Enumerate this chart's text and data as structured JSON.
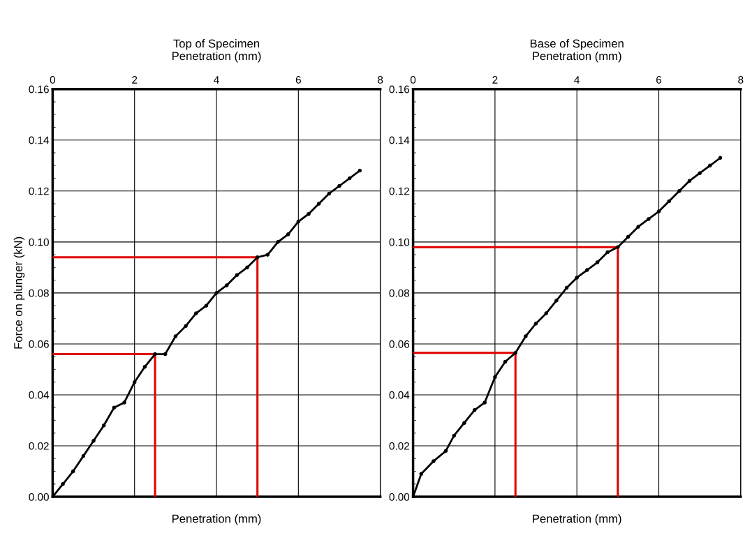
{
  "chart_data": [
    {
      "type": "line",
      "title": "Top of Specimen",
      "x2label": "Penetration (mm)",
      "xlabel": "Penetration (mm)",
      "ylabel": "Force on plunger (kN)",
      "xlim": [
        0,
        8
      ],
      "xticks": [
        0,
        2,
        4,
        6,
        8
      ],
      "ylim": [
        0,
        0.16
      ],
      "yticks": [
        {
          "value": 0,
          "label": "0.00"
        },
        {
          "value": 0.02,
          "label": "0.02"
        },
        {
          "value": 0.04,
          "label": "0.04"
        },
        {
          "value": 0.06,
          "label": "0.06"
        },
        {
          "value": 0.08,
          "label": "0.08"
        },
        {
          "value": 0.1,
          "label": "0.10"
        },
        {
          "value": 0.12,
          "label": "0.12"
        },
        {
          "value": 0.14,
          "label": "0.14"
        },
        {
          "value": 0.16,
          "label": "0.16"
        }
      ],
      "grid": true,
      "legend": false,
      "series": [
        {
          "color": "#000000",
          "marker": "circle",
          "x": [
            0,
            0.25,
            0.5,
            0.75,
            1.0,
            1.25,
            1.5,
            1.75,
            2.0,
            2.25,
            2.5,
            2.75,
            3.0,
            3.25,
            3.5,
            3.75,
            4.0,
            4.25,
            4.5,
            4.75,
            5.0,
            5.25,
            5.5,
            5.75,
            6.0,
            6.25,
            6.5,
            6.75,
            7.0,
            7.25,
            7.5
          ],
          "values": [
            0,
            0.005,
            0.01,
            0.016,
            0.022,
            0.028,
            0.035,
            0.037,
            0.045,
            0.051,
            0.056,
            0.056,
            0.063,
            0.067,
            0.072,
            0.075,
            0.08,
            0.083,
            0.087,
            0.09,
            0.094,
            0.095,
            0.1,
            0.103,
            0.108,
            0.111,
            0.115,
            0.119,
            0.122,
            0.125,
            0.128
          ]
        },
        {
          "color": "#e00000",
          "marker": "none",
          "x": [
            0,
            2.5,
            2.5
          ],
          "values": [
            0.056,
            0.056,
            0
          ]
        },
        {
          "color": "#e00000",
          "marker": "none",
          "x": [
            0,
            5,
            5
          ],
          "values": [
            0.094,
            0.094,
            0
          ]
        }
      ]
    },
    {
      "type": "line",
      "title": "Base of Specimen",
      "x2label": "Penetration (mm)",
      "xlabel": "Penetration (mm)",
      "xlim": [
        0,
        8
      ],
      "xticks": [
        0,
        2,
        4,
        6,
        8
      ],
      "ylim": [
        0,
        0.16
      ],
      "yticks": [
        {
          "value": 0,
          "label": "0.00"
        },
        {
          "value": 0.02,
          "label": "0.02"
        },
        {
          "value": 0.04,
          "label": "0.04"
        },
        {
          "value": 0.06,
          "label": "0.06"
        },
        {
          "value": 0.08,
          "label": "0.08"
        },
        {
          "value": 0.1,
          "label": "0.10"
        },
        {
          "value": 0.12,
          "label": "0.12"
        },
        {
          "value": 0.14,
          "label": "0.14"
        },
        {
          "value": 0.16,
          "label": "0.16"
        }
      ],
      "grid": true,
      "legend": false,
      "series": [
        {
          "color": "#000000",
          "marker": "circle",
          "x": [
            0,
            0.2,
            0.5,
            0.8,
            1.0,
            1.25,
            1.5,
            1.75,
            2.0,
            2.25,
            2.5,
            2.75,
            3.0,
            3.25,
            3.5,
            3.75,
            4.0,
            4.25,
            4.5,
            4.75,
            5.0,
            5.25,
            5.5,
            5.75,
            6.0,
            6.25,
            6.5,
            6.75,
            7.0,
            7.25,
            7.5
          ],
          "values": [
            0,
            0.009,
            0.014,
            0.018,
            0.024,
            0.029,
            0.034,
            0.037,
            0.047,
            0.053,
            0.0565,
            0.063,
            0.068,
            0.072,
            0.077,
            0.082,
            0.086,
            0.089,
            0.092,
            0.096,
            0.098,
            0.102,
            0.106,
            0.109,
            0.112,
            0.116,
            0.12,
            0.124,
            0.127,
            0.13,
            0.133
          ]
        },
        {
          "color": "#e00000",
          "marker": "none",
          "x": [
            0,
            2.5,
            2.5
          ],
          "values": [
            0.0565,
            0.0565,
            0
          ]
        },
        {
          "color": "#e00000",
          "marker": "none",
          "x": [
            0,
            5,
            5
          ],
          "values": [
            0.098,
            0.098,
            0
          ]
        }
      ]
    }
  ]
}
